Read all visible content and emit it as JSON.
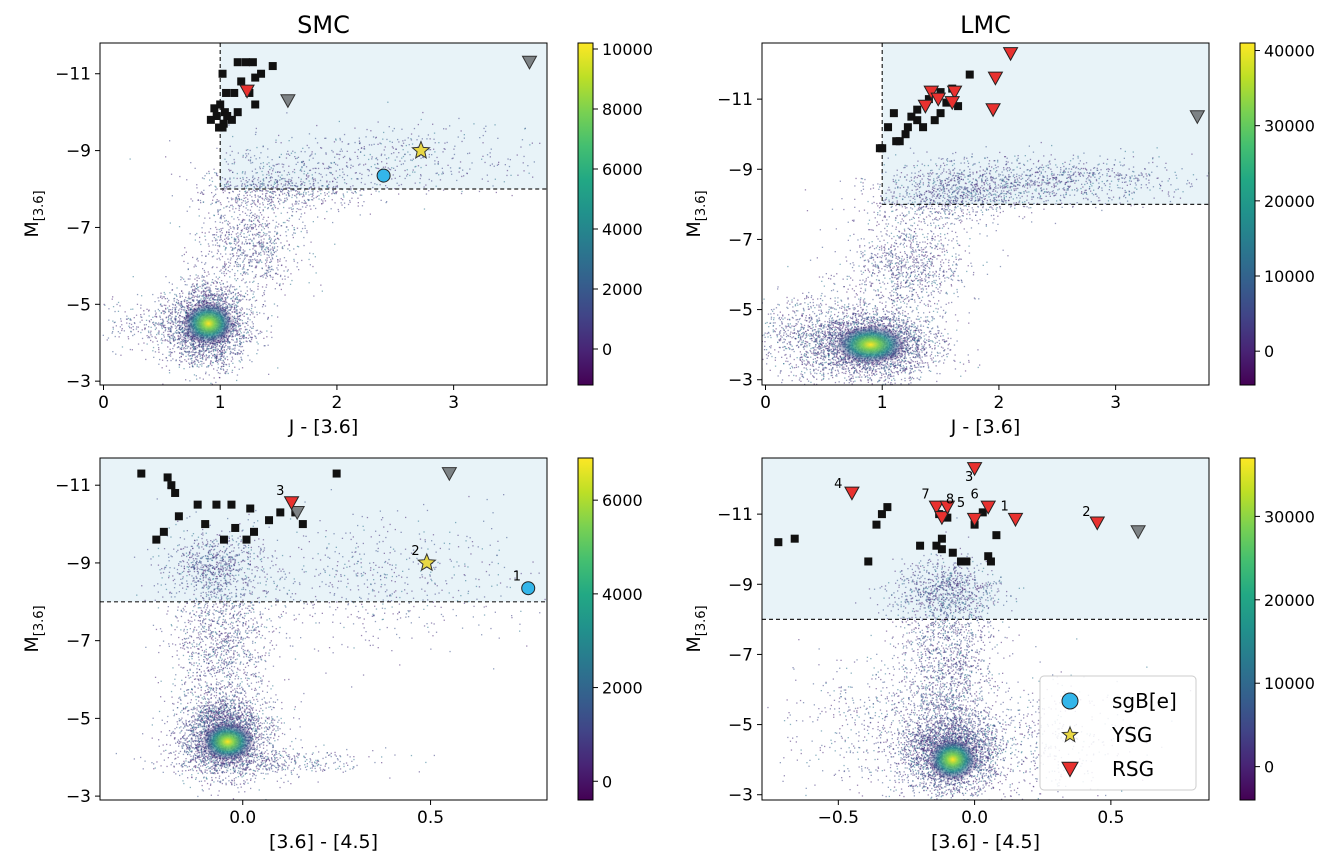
{
  "chart_data": [
    {
      "type": "scatter",
      "title": "SMC",
      "xlabel": "J - [3.6]",
      "ylabel": "M",
      "ylabel_sub": "[3.6]",
      "xlim": [
        -0.03,
        3.8
      ],
      "ylim": [
        -2.9,
        -11.8
      ],
      "y_inverted": true,
      "xticks": [
        0,
        1,
        2,
        3
      ],
      "xtick_labels": [
        "0",
        "1",
        "2",
        "3"
      ],
      "yticks": [
        -3,
        -5,
        -7,
        -9,
        -11
      ],
      "ytick_labels": [
        "−3",
        "−5",
        "−7",
        "−9",
        "−11"
      ],
      "colorbar": {
        "range": [
          -1200,
          10200
        ],
        "ticks": [
          0,
          2000,
          4000,
          6000,
          8000,
          10000
        ],
        "tick_labels": [
          "0",
          "2000",
          "4000",
          "6000",
          "8000",
          "10000"
        ]
      },
      "selection": {
        "x_cut": 1.0,
        "y_cut": -8.0,
        "fill": "#e8f3f8"
      },
      "density": {
        "seed": 11,
        "branches": [
          {
            "n": 2600,
            "cx": 0.9,
            "cy": -4.5,
            "sx": 0.17,
            "sy": 0.55,
            "slope": 0
          },
          {
            "n": 800,
            "cx": 1.25,
            "cy": -6.5,
            "sx": 0.22,
            "sy": 0.6,
            "slope": 0
          },
          {
            "n": 700,
            "cx": 1.5,
            "cy": -8.0,
            "sx": 0.35,
            "sy": 0.35,
            "slope": -0.6
          },
          {
            "n": 500,
            "cx": 2.4,
            "cy": -8.8,
            "sx": 0.7,
            "sy": 0.45,
            "slope": -0.5
          },
          {
            "n": 500,
            "cx": 0.6,
            "cy": -4.4,
            "sx": 0.35,
            "sy": 0.35,
            "slope": 0.6
          }
        ],
        "hot": {
          "x": 0.9,
          "y": -4.5,
          "rx": 0.22,
          "ry": 0.55
        }
      },
      "black_squares": [
        [
          0.99,
          -9.6
        ],
        [
          1.03,
          -9.7
        ],
        [
          0.97,
          -9.9
        ],
        [
          1.04,
          -10.0
        ],
        [
          0.95,
          -10.1
        ],
        [
          1.0,
          -10.2
        ],
        [
          0.92,
          -9.8
        ],
        [
          1.06,
          -9.9
        ],
        [
          1.1,
          -9.8
        ],
        [
          1.15,
          -10.0
        ],
        [
          1.05,
          -10.5
        ],
        [
          1.12,
          -10.5
        ],
        [
          1.18,
          -10.8
        ],
        [
          1.22,
          -11.3
        ],
        [
          1.15,
          -11.3
        ],
        [
          1.28,
          -11.3
        ],
        [
          1.3,
          -10.9
        ],
        [
          1.35,
          -11.0
        ],
        [
          1.45,
          -11.2
        ],
        [
          1.3,
          -10.2
        ],
        [
          1.02,
          -11.0
        ],
        [
          1.25,
          -10.5
        ],
        [
          1.02,
          -9.6
        ]
      ],
      "grey_triangles": [
        [
          3.65,
          -11.3
        ],
        [
          1.58,
          -10.3
        ]
      ],
      "red_triangles": [
        [
          1.23,
          -10.55
        ]
      ],
      "stars": [
        [
          2.72,
          -9.0
        ]
      ],
      "circles": [
        [
          2.4,
          -8.35
        ]
      ],
      "annotations": []
    },
    {
      "type": "scatter",
      "title": "LMC",
      "xlabel": "J - [3.6]",
      "ylabel": "M",
      "ylabel_sub": "[3.6]",
      "xlim": [
        -0.03,
        3.8
      ],
      "ylim": [
        -2.85,
        -12.6
      ],
      "y_inverted": true,
      "xticks": [
        0,
        1,
        2,
        3
      ],
      "xtick_labels": [
        "0",
        "1",
        "2",
        "3"
      ],
      "yticks": [
        -3,
        -5,
        -7,
        -9,
        -11
      ],
      "ytick_labels": [
        "−3",
        "−5",
        "−7",
        "−9",
        "−11"
      ],
      "colorbar": {
        "range": [
          -4500,
          41000
        ],
        "ticks": [
          0,
          10000,
          20000,
          30000,
          40000
        ],
        "tick_labels": [
          "0",
          "10000",
          "20000",
          "30000",
          "40000"
        ]
      },
      "selection": {
        "x_cut": 1.0,
        "y_cut": -8.0,
        "fill": "#e8f3f8"
      },
      "density": {
        "seed": 23,
        "branches": [
          {
            "n": 3000,
            "cx": 0.9,
            "cy": -4.0,
            "sx": 0.28,
            "sy": 0.5,
            "slope": 0
          },
          {
            "n": 1000,
            "cx": 1.2,
            "cy": -6.3,
            "sx": 0.25,
            "sy": 0.7,
            "slope": 0
          },
          {
            "n": 900,
            "cx": 1.6,
            "cy": -8.3,
            "sx": 0.35,
            "sy": 0.45,
            "slope": -0.8
          },
          {
            "n": 900,
            "cx": 2.4,
            "cy": -8.7,
            "sx": 0.55,
            "sy": 0.35,
            "slope": -0.5
          },
          {
            "n": 900,
            "cx": 0.45,
            "cy": -4.3,
            "sx": 0.35,
            "sy": 0.6,
            "slope": 0.3
          }
        ],
        "hot": {
          "x": 0.9,
          "y": -4.0,
          "rx": 0.3,
          "ry": 0.55
        }
      },
      "black_squares": [
        [
          0.98,
          -9.6
        ],
        [
          1.0,
          -9.6
        ],
        [
          1.05,
          -10.2
        ],
        [
          1.1,
          -10.6
        ],
        [
          1.15,
          -9.8
        ],
        [
          1.2,
          -10.0
        ],
        [
          1.25,
          -10.5
        ],
        [
          1.3,
          -10.7
        ],
        [
          1.35,
          -10.2
        ],
        [
          1.4,
          -11.0
        ],
        [
          1.45,
          -10.4
        ],
        [
          1.5,
          -11.2
        ],
        [
          1.55,
          -10.9
        ],
        [
          1.6,
          -11.3
        ],
        [
          1.65,
          -10.8
        ],
        [
          1.75,
          -11.7
        ],
        [
          1.5,
          -10.6
        ],
        [
          1.3,
          -10.4
        ],
        [
          1.22,
          -10.2
        ],
        [
          1.12,
          -9.8
        ]
      ],
      "grey_triangles": [
        [
          3.7,
          -10.5
        ]
      ],
      "red_triangles": [
        [
          2.1,
          -12.3
        ],
        [
          1.97,
          -11.6
        ],
        [
          1.95,
          -10.7
        ],
        [
          1.62,
          -11.2
        ],
        [
          1.6,
          -10.9
        ],
        [
          1.42,
          -11.2
        ],
        [
          1.37,
          -10.8
        ],
        [
          1.48,
          -11.0
        ]
      ],
      "stars": [],
      "circles": [],
      "annotations": []
    },
    {
      "type": "scatter",
      "title": "",
      "xlabel": "[3.6] - [4.5]",
      "ylabel": "M",
      "ylabel_sub": "[3.6]",
      "xlim": [
        -0.38,
        0.81
      ],
      "ylim": [
        -2.9,
        -11.7
      ],
      "y_inverted": true,
      "xticks": [
        0.0,
        0.5
      ],
      "xtick_labels": [
        "0.0",
        "0.5"
      ],
      "yticks": [
        -3,
        -5,
        -7,
        -9,
        -11
      ],
      "ytick_labels": [
        "−3",
        "−5",
        "−7",
        "−9",
        "−11"
      ],
      "colorbar": {
        "range": [
          -400,
          6900
        ],
        "ticks": [
          0,
          2000,
          4000,
          6000
        ],
        "tick_labels": [
          "0",
          "2000",
          "4000",
          "6000"
        ]
      },
      "selection": {
        "x_cut": null,
        "y_cut": -8.0,
        "fill": "#e8f3f8"
      },
      "density": {
        "seed": 37,
        "branches": [
          {
            "n": 3000,
            "cx": -0.05,
            "cy": -4.6,
            "sx": 0.06,
            "sy": 0.55,
            "slope": 0
          },
          {
            "n": 1200,
            "cx": -0.06,
            "cy": -7.0,
            "sx": 0.07,
            "sy": 1.0,
            "slope": 0
          },
          {
            "n": 600,
            "cx": -0.08,
            "cy": -9.0,
            "sx": 0.06,
            "sy": 0.4,
            "slope": 0
          },
          {
            "n": 700,
            "cx": 0.3,
            "cy": -8.5,
            "sx": 0.25,
            "sy": 0.8,
            "slope": 0
          },
          {
            "n": 500,
            "cx": 0.05,
            "cy": -3.9,
            "sx": 0.14,
            "sy": 0.2,
            "slope": 0
          }
        ],
        "hot": {
          "x": -0.04,
          "y": -4.4,
          "rx": 0.07,
          "ry": 0.5
        }
      },
      "black_squares": [
        [
          -0.27,
          -11.3
        ],
        [
          -0.2,
          -11.2
        ],
        [
          -0.19,
          -11.0
        ],
        [
          -0.18,
          -10.8
        ],
        [
          -0.12,
          -10.5
        ],
        [
          -0.17,
          -10.2
        ],
        [
          -0.1,
          -10.0
        ],
        [
          -0.21,
          -9.8
        ],
        [
          -0.23,
          -9.6
        ],
        [
          -0.05,
          -9.6
        ],
        [
          -0.02,
          -9.9
        ],
        [
          0.01,
          -9.6
        ],
        [
          0.03,
          -9.8
        ],
        [
          0.07,
          -10.1
        ],
        [
          0.1,
          -10.3
        ],
        [
          0.14,
          -10.3
        ],
        [
          0.16,
          -10.0
        ],
        [
          0.25,
          -11.3
        ],
        [
          -0.07,
          -10.5
        ],
        [
          -0.03,
          -10.5
        ],
        [
          0.02,
          -10.4
        ]
      ],
      "grey_triangles": [
        [
          0.55,
          -11.3
        ],
        [
          0.145,
          -10.3
        ]
      ],
      "red_triangles": [
        [
          0.13,
          -10.55
        ]
      ],
      "stars": [
        [
          0.49,
          -9.0
        ]
      ],
      "circles": [
        [
          0.76,
          -8.35
        ]
      ],
      "annotations": [
        {
          "text": "3",
          "x": 0.1,
          "y": -10.75
        },
        {
          "text": "2",
          "x": 0.46,
          "y": -9.2
        },
        {
          "text": "1",
          "x": 0.73,
          "y": -8.55
        }
      ]
    },
    {
      "type": "scatter",
      "title": "",
      "xlabel": "[3.6] - [4.5]",
      "ylabel": "M",
      "ylabel_sub": "[3.6]",
      "xlim": [
        -0.78,
        0.86
      ],
      "ylim": [
        -2.85,
        -12.6
      ],
      "y_inverted": true,
      "xticks": [
        -0.5,
        0.0,
        0.5
      ],
      "xtick_labels": [
        "−0.5",
        "0.0",
        "0.5"
      ],
      "yticks": [
        -3,
        -5,
        -7,
        -9,
        -11
      ],
      "ytick_labels": [
        "−3",
        "−5",
        "−7",
        "−9",
        "−11"
      ],
      "colorbar": {
        "range": [
          -4000,
          37000
        ],
        "ticks": [
          0,
          10000,
          20000,
          30000
        ],
        "tick_labels": [
          "0",
          "10000",
          "20000",
          "30000"
        ]
      },
      "selection": {
        "x_cut": null,
        "y_cut": -8.0,
        "fill": "#e8f3f8"
      },
      "density": {
        "seed": 53,
        "branches": [
          {
            "n": 3200,
            "cx": -0.09,
            "cy": -4.2,
            "sx": 0.09,
            "sy": 0.6,
            "slope": 0
          },
          {
            "n": 1400,
            "cx": -0.1,
            "cy": -6.8,
            "sx": 0.09,
            "sy": 1.1,
            "slope": 0
          },
          {
            "n": 800,
            "cx": -0.1,
            "cy": -8.8,
            "sx": 0.1,
            "sy": 0.45,
            "slope": 0
          },
          {
            "n": 600,
            "cx": 0.2,
            "cy": -4.6,
            "sx": 0.2,
            "sy": 0.9,
            "slope": 0
          },
          {
            "n": 500,
            "cx": -0.35,
            "cy": -5.0,
            "sx": 0.15,
            "sy": 1.0,
            "slope": 0
          }
        ],
        "hot": {
          "x": -0.08,
          "y": -4.0,
          "rx": 0.09,
          "ry": 0.6
        }
      },
      "black_squares": [
        [
          -0.72,
          -10.2
        ],
        [
          -0.66,
          -10.3
        ],
        [
          -0.39,
          -9.65
        ],
        [
          -0.36,
          -10.7
        ],
        [
          -0.34,
          -11.0
        ],
        [
          -0.32,
          -11.2
        ],
        [
          -0.2,
          -10.1
        ],
        [
          -0.14,
          -10.1
        ],
        [
          -0.12,
          -10.3
        ],
        [
          -0.12,
          -10.0
        ],
        [
          -0.08,
          -9.9
        ],
        [
          -0.05,
          -9.65
        ],
        [
          -0.03,
          -9.65
        ],
        [
          0.0,
          -10.7
        ],
        [
          0.05,
          -9.8
        ],
        [
          0.06,
          -9.65
        ],
        [
          0.08,
          -10.4
        ],
        [
          -0.13,
          -11.0
        ],
        [
          -0.1,
          -10.9
        ],
        [
          0.03,
          -11.05
        ]
      ],
      "grey_triangles": [
        [
          0.6,
          -10.5
        ]
      ],
      "red_triangles": [
        [
          -0.45,
          -11.6
        ],
        [
          0.0,
          -12.3
        ],
        [
          -0.14,
          -11.2
        ],
        [
          -0.12,
          -10.9
        ],
        [
          -0.1,
          -11.2
        ],
        [
          0.0,
          -10.85
        ],
        [
          0.05,
          -11.2
        ],
        [
          0.15,
          -10.85
        ],
        [
          0.45,
          -10.75
        ]
      ],
      "stars": [],
      "circles": [],
      "annotations": [
        {
          "text": "4",
          "x": -0.5,
          "y": -11.75
        },
        {
          "text": "3",
          "x": -0.02,
          "y": -11.95
        },
        {
          "text": "7",
          "x": -0.18,
          "y": -11.45
        },
        {
          "text": "8",
          "x": -0.09,
          "y": -11.3
        },
        {
          "text": "5",
          "x": -0.05,
          "y": -11.2
        },
        {
          "text": "6",
          "x": 0.0,
          "y": -11.45
        },
        {
          "text": "1",
          "x": 0.11,
          "y": -11.1
        },
        {
          "text": "2",
          "x": 0.41,
          "y": -10.95
        }
      ],
      "legend": {
        "placement": "lower right",
        "entries": [
          {
            "label": "sgB[e]",
            "marker": "circle"
          },
          {
            "label": "YSG",
            "marker": "star"
          },
          {
            "label": "RSG",
            "marker": "triangle"
          }
        ]
      }
    }
  ],
  "colors": {
    "sgBe": "#33b6ea",
    "YSG": "#e9d844",
    "RSG": "#e8312f",
    "grey_marker": "#7d8285",
    "square": "#111111",
    "selection_fill": "#e8f3f8"
  }
}
